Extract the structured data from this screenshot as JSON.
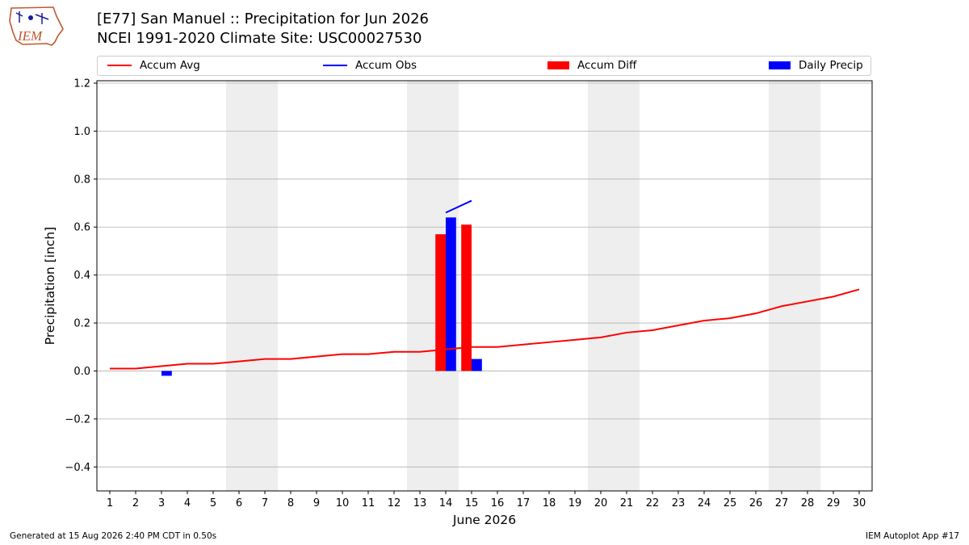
{
  "header": {
    "logo_text": "IEM",
    "title": "[E77] San Manuel :: Precipitation for Jun 2026",
    "subtitle": "NCEI 1991-2020 Climate Site: USC00027530"
  },
  "footer": {
    "generated": "Generated at 15 Aug 2026 2:40 PM CDT in 0.50s",
    "app": "IEM Autoplot App #17"
  },
  "colors": {
    "accum_avg": "#ff0000",
    "accum_obs": "#0000ff",
    "accum_diff": "#ff0000",
    "daily_precip": "#0000ff",
    "weekend_shade": "#eeeeee",
    "grid": "#b0b0b0"
  },
  "chart_data": {
    "type": "bar",
    "xlabel": "June 2026",
    "ylabel": "Precipitation [inch]",
    "xlim": [
      0.5,
      30.5
    ],
    "ylim": [
      -0.5,
      1.21
    ],
    "x_ticks": [
      1,
      2,
      3,
      4,
      5,
      6,
      7,
      8,
      9,
      10,
      11,
      12,
      13,
      14,
      15,
      16,
      17,
      18,
      19,
      20,
      21,
      22,
      23,
      24,
      25,
      26,
      27,
      28,
      29,
      30
    ],
    "y_ticks": [
      -0.4,
      -0.2,
      0.0,
      0.2,
      0.4,
      0.6,
      0.8,
      1.0,
      1.2
    ],
    "y_tick_labels": [
      "−0.4",
      "−0.2",
      "0.0",
      "0.2",
      "0.4",
      "0.6",
      "0.8",
      "1.0",
      "1.2"
    ],
    "grid": "horizontal",
    "legend_position": "top",
    "weekend_shading": [
      [
        6,
        7
      ],
      [
        13,
        14
      ],
      [
        20,
        21
      ],
      [
        27,
        28
      ]
    ],
    "series": [
      {
        "name": "Accum Avg",
        "kind": "line",
        "x": [
          1,
          2,
          3,
          4,
          5,
          6,
          7,
          8,
          9,
          10,
          11,
          12,
          13,
          14,
          15,
          16,
          17,
          18,
          19,
          20,
          21,
          22,
          23,
          24,
          25,
          26,
          27,
          28,
          29,
          30
        ],
        "values": [
          0.01,
          0.01,
          0.02,
          0.03,
          0.03,
          0.04,
          0.05,
          0.05,
          0.06,
          0.07,
          0.07,
          0.08,
          0.08,
          0.09,
          0.1,
          0.1,
          0.11,
          0.12,
          0.13,
          0.14,
          0.16,
          0.17,
          0.19,
          0.21,
          0.22,
          0.24,
          0.27,
          0.29,
          0.31,
          0.34
        ]
      },
      {
        "name": "Accum Obs",
        "kind": "line",
        "x": [
          14,
          15
        ],
        "values": [
          0.66,
          0.71
        ]
      },
      {
        "name": "Accum Diff",
        "kind": "bar",
        "x": [
          14,
          15
        ],
        "values": [
          0.57,
          0.61
        ]
      },
      {
        "name": "Daily Precip",
        "kind": "bar",
        "x": [
          3,
          14,
          15
        ],
        "values": [
          -0.02,
          0.64,
          0.05
        ]
      }
    ]
  }
}
